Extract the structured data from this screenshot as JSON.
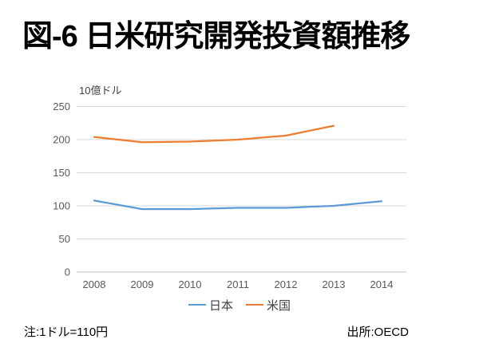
{
  "slide": {
    "title": "図-6 日米研究開発投資額推移",
    "note_left": "注:1ドル=110円",
    "note_right": "出所:OECD"
  },
  "chart_data": {
    "type": "line",
    "title": "図-6 日米研究開発投資額推移",
    "unit_label": "10億ドル",
    "xlabel": "",
    "ylabel": "10億ドル",
    "categories": [
      "2008",
      "2009",
      "2010",
      "2011",
      "2012",
      "2013",
      "2014"
    ],
    "series": [
      {
        "name": "日本",
        "color": "#5B9BD5",
        "values": [
          108,
          95,
          95,
          97,
          97,
          100,
          107
        ]
      },
      {
        "name": "米国",
        "color": "#ED7D31",
        "values": [
          204,
          196,
          197,
          200,
          206,
          221,
          null
        ]
      }
    ],
    "ylim": [
      0,
      250
    ],
    "yticks": [
      0,
      50,
      100,
      150,
      200,
      250
    ],
    "grid": true,
    "legend_position": "bottom",
    "colors": {
      "gridline": "#D9D9D9",
      "axis_line": "#BFBFBF",
      "tick_label": "#595959",
      "background": "#FFFFFF"
    }
  }
}
